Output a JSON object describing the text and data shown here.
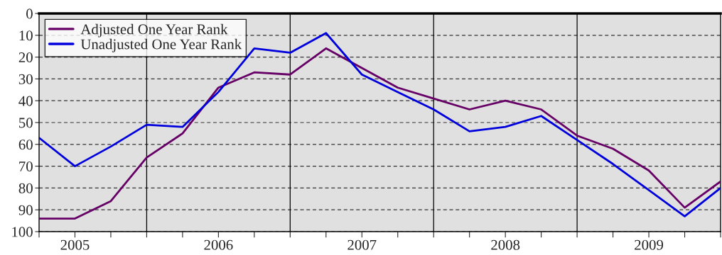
{
  "chart_data": {
    "type": "line",
    "x": [
      2005.25,
      2005.5,
      2005.75,
      2006.0,
      2006.25,
      2006.5,
      2006.75,
      2007.0,
      2007.25,
      2007.5,
      2007.75,
      2008.0,
      2008.25,
      2008.5,
      2008.75,
      2009.0,
      2009.25,
      2009.5,
      2009.75,
      2010.0
    ],
    "series": [
      {
        "name": "Adjusted One Year Rank",
        "color": "#660066",
        "values": [
          94,
          94,
          86,
          66,
          55,
          34,
          27,
          28,
          16,
          25,
          34,
          39,
          44,
          40,
          44,
          56,
          62,
          72,
          89,
          77
        ]
      },
      {
        "name": "Unadjusted One Year Rank",
        "color": "#0000dd",
        "values": [
          57,
          70,
          61,
          51,
          52,
          36,
          16,
          18,
          9,
          28,
          36,
          44,
          54,
          52,
          47,
          58,
          69,
          81,
          93,
          80
        ]
      }
    ],
    "xlim": [
      2005.25,
      2010.0
    ],
    "xticks": [
      {
        "value": 2005.25,
        "label": null
      },
      {
        "value": 2005.5,
        "label": null
      },
      {
        "value": 2005.75,
        "label": null
      },
      {
        "value": 2006.0,
        "label": null
      },
      {
        "value": 2006.25,
        "label": null
      },
      {
        "value": 2006.5,
        "label": null
      },
      {
        "value": 2006.75,
        "label": null
      },
      {
        "value": 2007.0,
        "label": null
      },
      {
        "value": 2007.25,
        "label": null
      },
      {
        "value": 2007.5,
        "label": null
      },
      {
        "value": 2007.75,
        "label": null
      },
      {
        "value": 2008.0,
        "label": null
      },
      {
        "value": 2008.25,
        "label": null
      },
      {
        "value": 2008.5,
        "label": null
      },
      {
        "value": 2008.75,
        "label": null
      },
      {
        "value": 2009.0,
        "label": null
      },
      {
        "value": 2009.25,
        "label": null
      },
      {
        "value": 2009.5,
        "label": null
      },
      {
        "value": 2009.75,
        "label": null
      },
      {
        "value": 2010.0,
        "label": null
      },
      {
        "value": 2005.5,
        "label": "2005"
      },
      {
        "value": 2006.5,
        "label": "2006"
      },
      {
        "value": 2007.5,
        "label": "2007"
      },
      {
        "value": 2008.5,
        "label": "2008"
      },
      {
        "value": 2009.5,
        "label": "2009"
      }
    ],
    "ylim": [
      100,
      0
    ],
    "yticks": [
      0,
      10,
      20,
      30,
      40,
      50,
      60,
      70,
      80,
      90,
      100
    ],
    "grid": "y",
    "legend": "top left",
    "marker": "none",
    "line_style": "solid",
    "ref_lines": [
      {
        "axis": "x",
        "value": 2006.0,
        "label": null,
        "color": "#000000",
        "line_style": "solid"
      },
      {
        "axis": "x",
        "value": 2007.0,
        "label": null,
        "color": "#000000",
        "line_style": "solid"
      },
      {
        "axis": "x",
        "value": 2008.0,
        "label": null,
        "color": "#000000",
        "line_style": "solid"
      },
      {
        "axis": "x",
        "value": 2009.0,
        "label": null,
        "color": "#000000",
        "line_style": "solid"
      }
    ]
  }
}
